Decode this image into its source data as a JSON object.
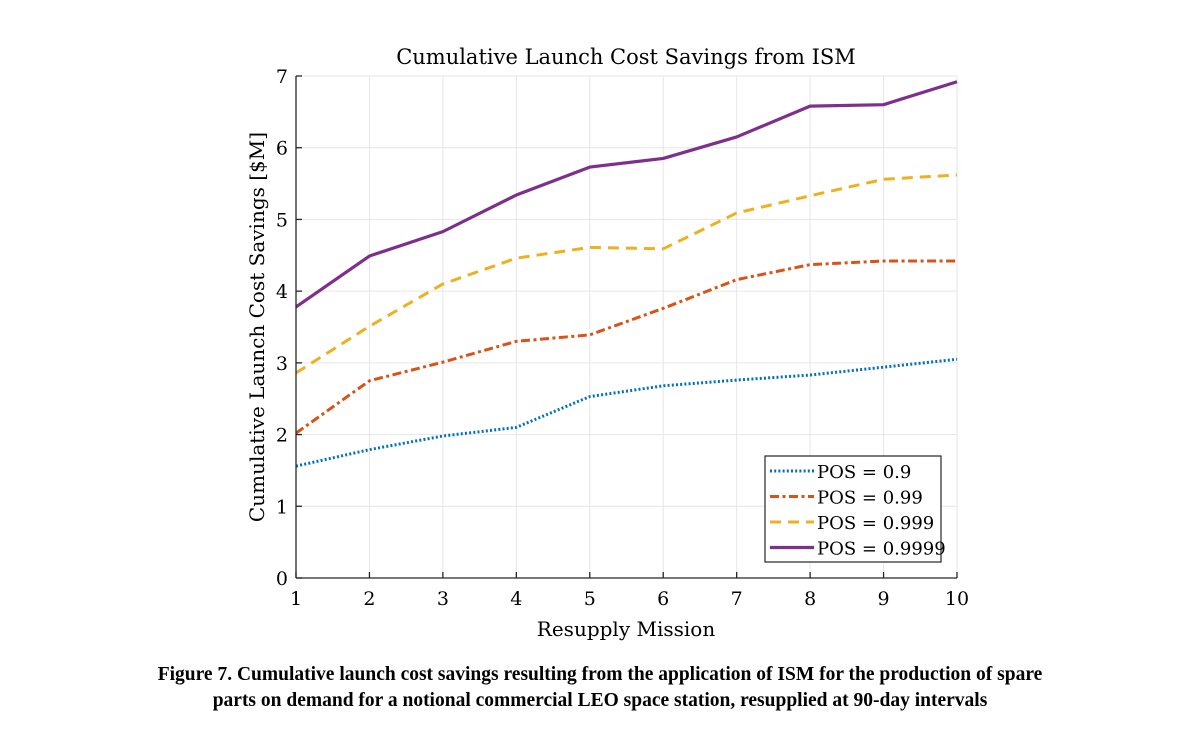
{
  "chart_data": {
    "type": "line",
    "title": "Cumulative Launch Cost Savings from ISM",
    "xlabel": "Resupply Mission",
    "ylabel": "Cumulative Launch Cost Savings [$M]",
    "x": [
      1,
      2,
      3,
      4,
      5,
      6,
      7,
      8,
      9,
      10
    ],
    "xlim": [
      1,
      10
    ],
    "ylim": [
      0,
      7
    ],
    "xticks": [
      1,
      2,
      3,
      4,
      5,
      6,
      7,
      8,
      9,
      10
    ],
    "yticks": [
      0,
      1,
      2,
      3,
      4,
      5,
      6,
      7
    ],
    "grid": true,
    "legend_position": "bottom-right",
    "series": [
      {
        "name": "POS = 0.9",
        "style": "dotted",
        "color": "#0072BD",
        "values": [
          1.56,
          1.79,
          1.98,
          2.1,
          2.53,
          2.68,
          2.76,
          2.83,
          2.94,
          3.05
        ]
      },
      {
        "name": "POS = 0.99",
        "style": "dashdot",
        "color": "#D95319",
        "values": [
          2.02,
          2.75,
          3.01,
          3.3,
          3.39,
          3.76,
          4.16,
          4.37,
          4.42,
          4.42
        ]
      },
      {
        "name": "POS = 0.999",
        "style": "dashed",
        "color": "#EDB120",
        "values": [
          2.86,
          3.51,
          4.1,
          4.46,
          4.61,
          4.59,
          5.09,
          5.33,
          5.56,
          5.62
        ]
      },
      {
        "name": "POS = 0.9999",
        "style": "solid",
        "color": "#7E2F8E",
        "values": [
          3.78,
          4.49,
          4.83,
          5.34,
          5.73,
          5.85,
          6.15,
          6.58,
          6.6,
          6.92
        ]
      }
    ]
  },
  "caption": {
    "line1": "Figure 7. Cumulative launch cost savings resulting from the application of ISM for the production of spare",
    "line2": "parts on demand for a notional commercial LEO space station, resupplied at 90-day intervals"
  }
}
